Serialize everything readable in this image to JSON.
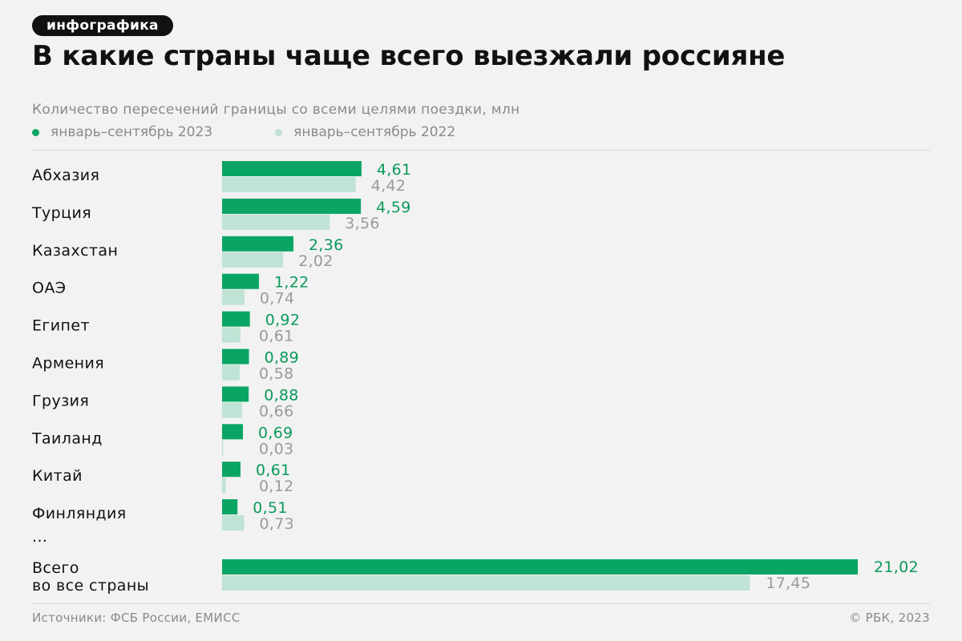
{
  "tag": "инфографика",
  "title": "В какие страны чаще всего выезжали россияне",
  "subtitle": "Количество пересечений границы со всеми целями поездки, млн",
  "legend": {
    "current": "январь–сентябрь 2023",
    "previous": "январь–сентябрь 2022"
  },
  "colors": {
    "current": "#0aa564",
    "previous": "#bfe3d4",
    "current_label": "#0a9a5a",
    "previous_label": "#9a9a9a"
  },
  "chart_data": {
    "type": "bar",
    "orientation": "horizontal",
    "categories": [
      "Абхазия",
      "Турция",
      "Казахстан",
      "ОАЭ",
      "Египет",
      "Армения",
      "Грузия",
      "Таиланд",
      "Китай",
      "Финляндия"
    ],
    "series": [
      {
        "name": "январь–сентябрь 2023",
        "values": [
          4.61,
          4.59,
          2.36,
          1.22,
          0.92,
          0.89,
          0.88,
          0.69,
          0.61,
          0.51
        ]
      },
      {
        "name": "январь–сентябрь 2022",
        "values": [
          4.42,
          3.56,
          2.02,
          0.74,
          0.61,
          0.58,
          0.66,
          0.03,
          0.12,
          0.73
        ]
      }
    ],
    "value_labels": {
      "current": [
        "4,61",
        "4,59",
        "2,36",
        "1,22",
        "0,92",
        "0,89",
        "0,88",
        "0,69",
        "0,61",
        "0,51"
      ],
      "previous": [
        "4,42",
        "3,56",
        "2,02",
        "0,74",
        "0,61",
        "0,58",
        "0,66",
        "0,03",
        "0,12",
        "0,73"
      ]
    },
    "ellipsis": "...",
    "total": {
      "label_lines": [
        "Всего",
        "во все страны"
      ],
      "current": 21.02,
      "previous": 17.45,
      "current_label": "21,02",
      "previous_label": "17,45"
    },
    "unit": "млн",
    "xlim": [
      0,
      21.02
    ],
    "grid": false,
    "legend_position": "top-left"
  },
  "footer": {
    "sources": "Источники: ФСБ России, ЕМИСС",
    "copyright": "© РБК, 2023"
  }
}
